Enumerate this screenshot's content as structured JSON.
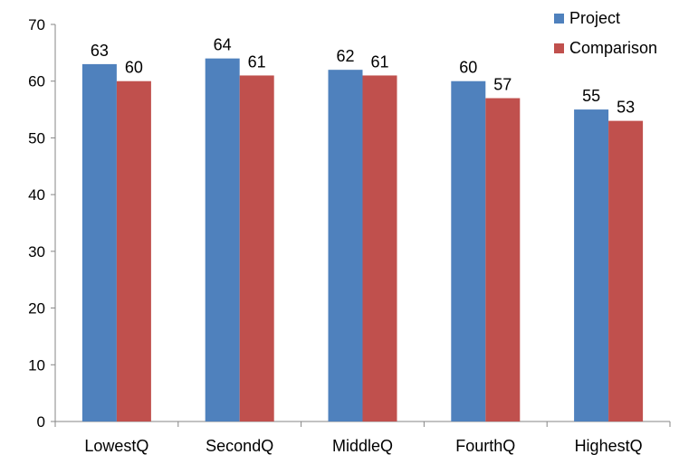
{
  "chart_data": {
    "type": "bar",
    "title": "",
    "xlabel": "",
    "ylabel": "",
    "ylim": [
      0,
      70
    ],
    "yticks": [
      0,
      10,
      20,
      30,
      40,
      50,
      60,
      70
    ],
    "grid": false,
    "legend_position": "top-right",
    "categories": [
      "LowestQ",
      "SecondQ",
      "MiddleQ",
      "FourthQ",
      "HighestQ"
    ],
    "series": [
      {
        "name": "Project",
        "color": "#4F81BD",
        "values": [
          63,
          64,
          62,
          60,
          55
        ]
      },
      {
        "name": "Comparison",
        "color": "#C0504D",
        "values": [
          60,
          61,
          61,
          57,
          53
        ]
      }
    ]
  }
}
